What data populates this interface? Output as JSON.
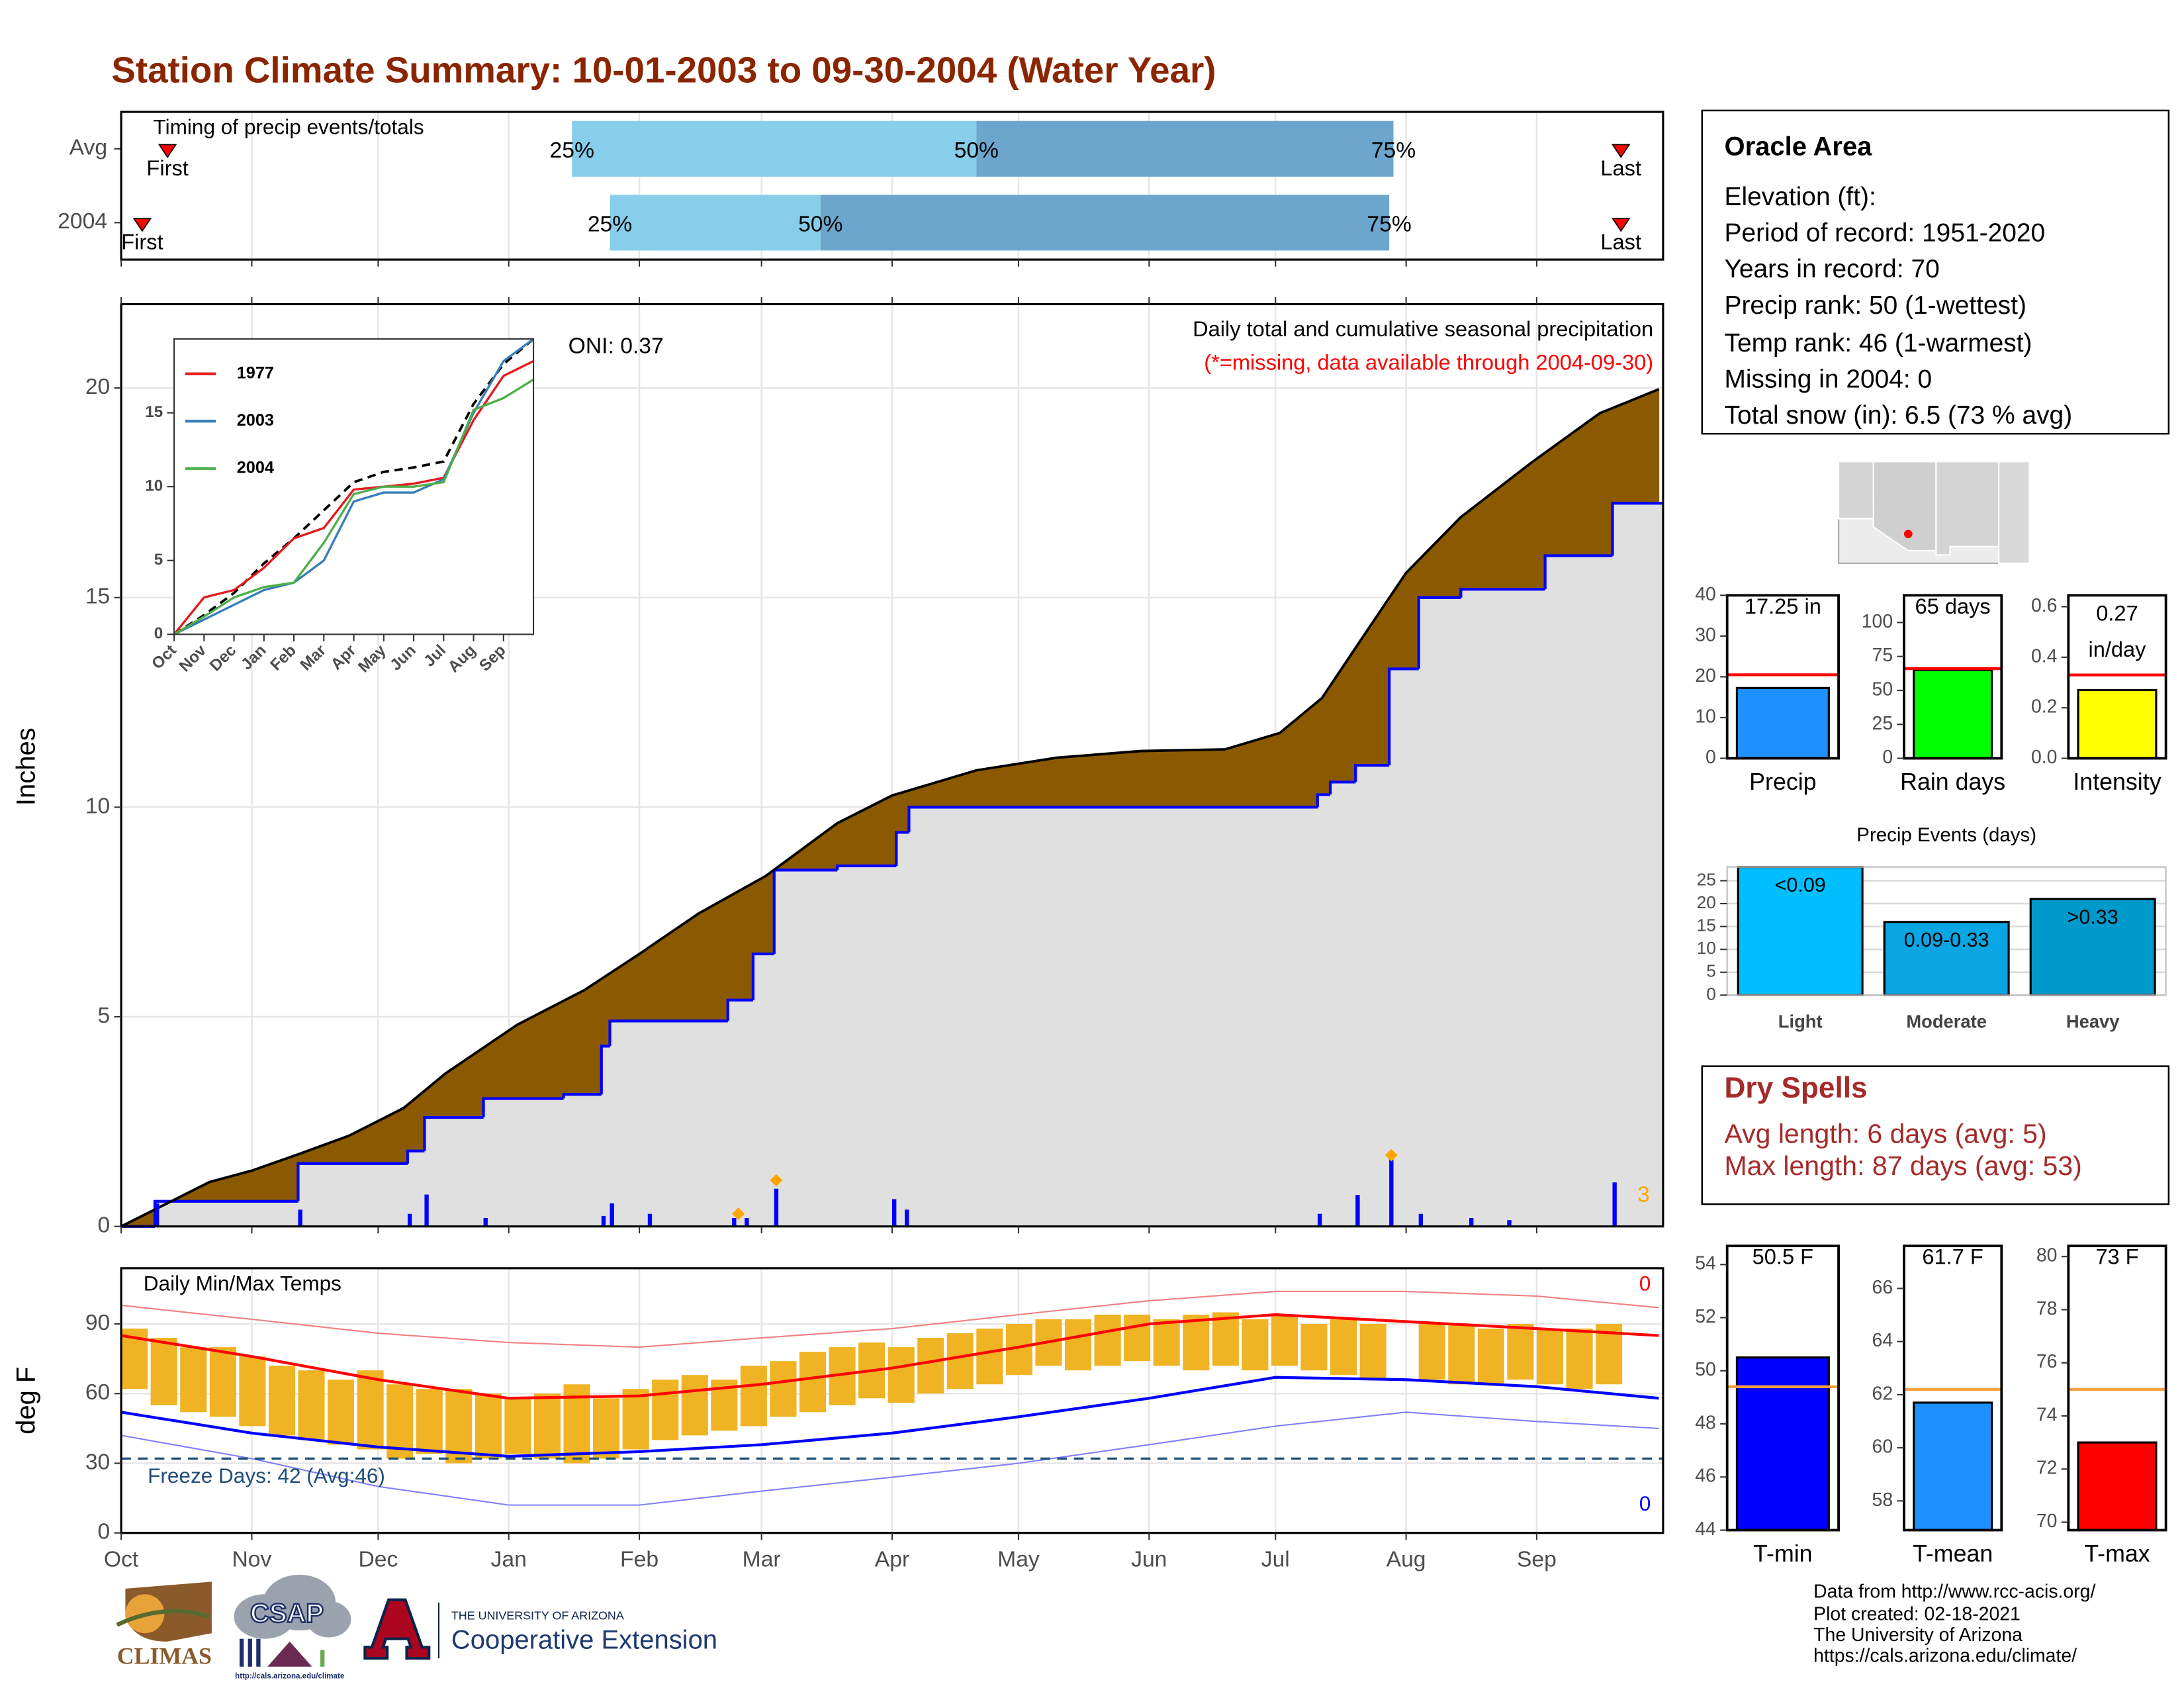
{
  "title": "Station Climate Summary: 10-01-2003 to 09-30-2004 (Water Year)",
  "info": {
    "title": "Oracle Area",
    "lines": [
      "Elevation (ft):",
      "Period of record: 1951-2020",
      "Years in record: 70",
      "Precip rank: 50 (1-wettest)",
      "Temp rank: 46 (1-warmest)",
      "Missing in 2004: 0",
      "Total snow (in): 6.5 (73 % avg)"
    ]
  },
  "dry_spells": {
    "title": "Dry Spells",
    "lines": [
      "Avg length: 6 days (avg: 5)",
      "Max length: 87 days (avg: 53)"
    ]
  },
  "footer": [
    "Data from http://www.rcc-acis.org/",
    "Plot created: 02-18-2021",
    "The University of Arizona",
    "https://cals.arizona.edu/climate/"
  ],
  "logos": {
    "climas": "CLIMAS",
    "csap": "CSAP",
    "csap_url": "http://cals.arizona.edu/climate",
    "university": "THE UNIVERSITY OF ARIZONA",
    "extension": "Cooperative Extension"
  },
  "chart_data": [
    {
      "type": "timing",
      "title": "Timing of precip events/totals",
      "categories": [
        "Avg",
        "2004"
      ],
      "xlim": [
        0,
        366
      ],
      "xticks": [
        0,
        31,
        61,
        92,
        123,
        152,
        183,
        213,
        244,
        274,
        305,
        336
      ],
      "markers": [
        {
          "name": "First",
          "values": [
            11,
            5
          ]
        },
        {
          "name": "Last",
          "values": [
            356,
            356
          ]
        }
      ],
      "quantiles": [
        {
          "name": "25%",
          "values": [
            107,
            116
          ]
        },
        {
          "name": "50%",
          "values": [
            203,
            166
          ]
        },
        {
          "name": "75%",
          "values": [
            302,
            301
          ]
        }
      ],
      "colors": [
        "#87ceeb",
        "#6ca6cd"
      ],
      "marker_color": "#ff0000"
    },
    {
      "type": "area",
      "title": "Daily total and cumulative seasonal precipitation",
      "subtitle": "(*=missing, data available through 2004-09-30)",
      "annotation": "ONI: 0.37",
      "record_count": 3,
      "ylabel": "Inches",
      "xlim": [
        0,
        366
      ],
      "xticks": [
        0,
        31,
        61,
        92,
        123,
        152,
        183,
        213,
        244,
        274,
        305,
        336
      ],
      "ylim": [
        0,
        22
      ],
      "yticks": [
        0,
        5,
        10,
        15,
        20
      ],
      "grid": true,
      "average": {
        "color": "#000000",
        "fill": "#8b5a00",
        "x": [
          0,
          21,
          31,
          42,
          54,
          67,
          77,
          94,
          110,
          123,
          137,
          153,
          170,
          183,
          203,
          222,
          242,
          262,
          275,
          285,
          295,
          305,
          318,
          335,
          351,
          365
        ],
        "values": [
          0,
          1.06,
          1.33,
          1.72,
          2.16,
          2.82,
          3.65,
          4.81,
          5.64,
          6.5,
          7.46,
          8.36,
          9.62,
          10.28,
          10.88,
          11.18,
          11.34,
          11.38,
          11.77,
          12.6,
          14.1,
          15.59,
          16.92,
          18.24,
          19.4,
          19.97
        ]
      },
      "cumulative": {
        "color": "#0000ff",
        "fill": "#e0e0e0",
        "x": [
          0,
          8,
          42,
          68,
          72,
          86,
          105,
          114,
          116,
          144,
          150,
          155,
          170,
          184,
          187,
          284,
          287,
          293,
          301,
          308,
          318,
          338,
          354
        ],
        "values": [
          0,
          0.6,
          1.5,
          1.8,
          2.6,
          3.05,
          3.15,
          4.3,
          4.9,
          5.4,
          6.5,
          8.5,
          8.6,
          9.4,
          10.0,
          10.3,
          10.6,
          11.0,
          13.3,
          15.0,
          15.2,
          16.0,
          17.25
        ]
      },
      "daily": {
        "color": "#0000ff",
        "x": [
          8,
          42,
          68,
          72,
          86,
          114,
          116,
          125,
          145,
          148,
          155,
          183,
          186,
          284,
          293,
          301,
          308,
          320,
          329,
          354
        ],
        "values": [
          0.55,
          0.4,
          0.3,
          0.76,
          0.2,
          0.25,
          0.55,
          0.3,
          0.2,
          0.2,
          0.9,
          0.65,
          0.4,
          0.3,
          0.75,
          1.6,
          0.3,
          0.2,
          0.15,
          1.05
        ]
      },
      "records": {
        "color": "#ffa500",
        "x": [
          146,
          155,
          301
        ],
        "values": [
          0.3,
          1.1,
          1.7
        ]
      }
    },
    {
      "type": "line",
      "xlim": [
        0,
        12
      ],
      "xticks": [
        {
          "value": 0,
          "label": "Oct"
        },
        {
          "value": 1,
          "label": "Nov"
        },
        {
          "value": 2,
          "label": "Dec"
        },
        {
          "value": 3,
          "label": "Jan"
        },
        {
          "value": 4,
          "label": "Feb"
        },
        {
          "value": 5,
          "label": "Mar"
        },
        {
          "value": 6,
          "label": "Apr"
        },
        {
          "value": 7,
          "label": "May"
        },
        {
          "value": 8,
          "label": "Jun"
        },
        {
          "value": 9,
          "label": "Jul"
        },
        {
          "value": 10,
          "label": "Aug"
        },
        {
          "value": 11,
          "label": "Sep"
        }
      ],
      "ylim": [
        0,
        20
      ],
      "yticks": [
        0,
        5,
        10,
        15
      ],
      "x": [
        0,
        1,
        2,
        3,
        4,
        5,
        6,
        7,
        8,
        9,
        10,
        11,
        12
      ],
      "series": [
        {
          "name": "1977",
          "color": "#e41a1c",
          "values": [
            0,
            2.5,
            3.0,
            4.5,
            6.5,
            7.2,
            9.8,
            10.0,
            10.2,
            10.6,
            14.5,
            17.5,
            18.5
          ]
        },
        {
          "name": "2003",
          "color": "#377eb8",
          "values": [
            0,
            1.0,
            2.0,
            3.0,
            3.5,
            5.0,
            9.0,
            9.6,
            9.6,
            10.5,
            15.0,
            18.5,
            20
          ]
        },
        {
          "name": "2004",
          "color": "#4daf4a",
          "values": [
            0,
            1.2,
            2.5,
            3.2,
            3.5,
            6.2,
            9.5,
            10.0,
            10.0,
            10.3,
            15.2,
            16.0,
            17.25
          ]
        }
      ],
      "average": {
        "color": "#000000",
        "values": [
          0,
          1.3,
          2.8,
          4.8,
          6.5,
          8.4,
          10.3,
          11.0,
          11.3,
          11.7,
          15.6,
          18.3,
          20
        ]
      }
    },
    {
      "type": "range",
      "title": "Daily Min/Max Temps",
      "ylabel": "deg F",
      "annotation": "Freeze Days: 42 (Avg:46)",
      "freeze_line": 32,
      "record_high_count": 0,
      "record_low_count": 0,
      "xlim": [
        0,
        366
      ],
      "xticks": [
        {
          "value": 0,
          "label": "Oct"
        },
        {
          "value": 31,
          "label": "Nov"
        },
        {
          "value": 61,
          "label": "Dec"
        },
        {
          "value": 92,
          "label": "Jan"
        },
        {
          "value": 123,
          "label": "Feb"
        },
        {
          "value": 152,
          "label": "Mar"
        },
        {
          "value": 183,
          "label": "Apr"
        },
        {
          "value": 213,
          "label": "May"
        },
        {
          "value": 244,
          "label": "Jun"
        },
        {
          "value": 274,
          "label": "Jul"
        },
        {
          "value": 305,
          "label": "Aug"
        },
        {
          "value": 336,
          "label": "Sep"
        }
      ],
      "ylim": [
        0,
        114
      ],
      "yticks": [
        0,
        30,
        60,
        90
      ],
      "grid": true,
      "daily": {
        "color": "#f0b323",
        "x": [
          0,
          7,
          14,
          21,
          28,
          35,
          42,
          49,
          56,
          63,
          70,
          77,
          84,
          91,
          98,
          105,
          112,
          119,
          126,
          133,
          140,
          147,
          154,
          161,
          168,
          175,
          182,
          189,
          196,
          203,
          210,
          217,
          224,
          231,
          238,
          245,
          252,
          259,
          266,
          273,
          280,
          287,
          294,
          301,
          308,
          315,
          322,
          329,
          336,
          343,
          350,
          357
        ],
        "high": [
          88,
          84,
          80,
          80,
          76,
          72,
          70,
          66,
          70,
          64,
          62,
          62,
          60,
          58,
          60,
          64,
          58,
          62,
          66,
          68,
          66,
          72,
          74,
          78,
          80,
          82,
          80,
          84,
          86,
          88,
          90,
          92,
          92,
          94,
          94,
          92,
          94,
          95,
          92,
          94,
          90,
          92,
          90,
          null,
          90,
          90,
          88,
          90,
          88,
          88,
          90,
          null
        ],
        "low": [
          62,
          55,
          52,
          50,
          46,
          42,
          40,
          38,
          36,
          32,
          34,
          30,
          32,
          34,
          32,
          30,
          32,
          36,
          40,
          42,
          44,
          46,
          50,
          52,
          55,
          58,
          56,
          60,
          62,
          64,
          68,
          72,
          70,
          72,
          74,
          72,
          70,
          72,
          70,
          72,
          70,
          68,
          66,
          null,
          66,
          64,
          64,
          66,
          64,
          62,
          64,
          null
        ]
      },
      "average_max": {
        "color": "#ff0000",
        "x": [
          0,
          31,
          61,
          92,
          123,
          152,
          183,
          213,
          244,
          274,
          305,
          336,
          365
        ],
        "values": [
          85,
          76,
          66,
          58,
          59,
          64,
          71,
          80,
          90,
          94,
          91,
          88,
          85
        ]
      },
      "average_min": {
        "color": "#0000ff",
        "x": [
          0,
          31,
          61,
          92,
          123,
          152,
          183,
          213,
          244,
          274,
          305,
          336,
          365
        ],
        "values": [
          52,
          43,
          37,
          33,
          35,
          38,
          43,
          50,
          58,
          67,
          66,
          63,
          58
        ]
      },
      "record_max": {
        "color": "#f08080",
        "x": [
          0,
          31,
          61,
          92,
          123,
          152,
          183,
          213,
          244,
          274,
          305,
          336,
          365
        ],
        "values": [
          98,
          92,
          86,
          82,
          80,
          84,
          88,
          94,
          100,
          104,
          104,
          102,
          97
        ]
      },
      "record_min": {
        "color": "#8080ff",
        "x": [
          0,
          31,
          61,
          92,
          123,
          152,
          183,
          213,
          244,
          274,
          305,
          336,
          365
        ],
        "values": [
          42,
          32,
          20,
          12,
          12,
          18,
          24,
          30,
          38,
          46,
          52,
          48,
          45
        ]
      }
    },
    {
      "type": "bar",
      "categories": [
        "Precip"
      ],
      "values": [
        17.25
      ],
      "value_labels": [
        "17.25 in"
      ],
      "average": 20.5,
      "average_color": "#ff0000",
      "color": "#1e90ff",
      "ylim": [
        0,
        40
      ],
      "yticks": [
        0,
        10,
        20,
        30,
        40
      ]
    },
    {
      "type": "bar",
      "categories": [
        "Rain days"
      ],
      "values": [
        65
      ],
      "value_labels": [
        "65 days"
      ],
      "average": 66,
      "average_color": "#ff0000",
      "color": "#00ff00",
      "ylim": [
        0,
        120
      ],
      "yticks": [
        0,
        25,
        50,
        75,
        100
      ]
    },
    {
      "type": "bar",
      "categories": [
        "Intensity"
      ],
      "values": [
        0.27
      ],
      "unit": "in/day",
      "average": 0.33,
      "average_color": "#ff0000",
      "color": "#ffff00",
      "ylim": [
        0,
        0.645
      ],
      "yticks": [
        {
          "value": 0,
          "label": "0.0"
        },
        0.2,
        0.4,
        0.6
      ]
    },
    {
      "type": "bar",
      "title": "Precip Events (days)",
      "categories": [
        "Light",
        "Moderate",
        "Heavy"
      ],
      "values": [
        28,
        16,
        21
      ],
      "ranges": [
        "<0.09",
        "0.09-0.33",
        ">0.33"
      ],
      "colors": [
        "#00bfff",
        "#0aa5e3",
        "#0099cc"
      ],
      "ylim": [
        0,
        28
      ],
      "yticks": [
        0,
        5,
        10,
        15,
        20,
        25
      ],
      "grid": true
    },
    {
      "type": "bar",
      "categories": [
        "T-min"
      ],
      "values": [
        50.5
      ],
      "value_labels": [
        "50.5 F"
      ],
      "average": 49.4,
      "average_color": "#f5a03c",
      "color": "#0000ff",
      "ylim": [
        44,
        54.7
      ],
      "yticks": [
        44,
        46,
        48,
        50,
        52,
        54
      ]
    },
    {
      "type": "bar",
      "categories": [
        "T-mean"
      ],
      "values": [
        61.7
      ],
      "value_labels": [
        "61.7 F"
      ],
      "average": 62.2,
      "average_color": "#f5a03c",
      "color": "#1e90ff",
      "ylim": [
        56.9,
        67.6
      ],
      "yticks": [
        58,
        60,
        62,
        64,
        66
      ]
    },
    {
      "type": "bar",
      "categories": [
        "T-max"
      ],
      "values": [
        73
      ],
      "value_labels": [
        "73 F"
      ],
      "average": 75,
      "average_color": "#f5a03c",
      "color": "#ff0000",
      "ylim": [
        69.7,
        80.4
      ],
      "yticks": [
        70,
        72,
        74,
        76,
        78,
        80
      ]
    }
  ]
}
